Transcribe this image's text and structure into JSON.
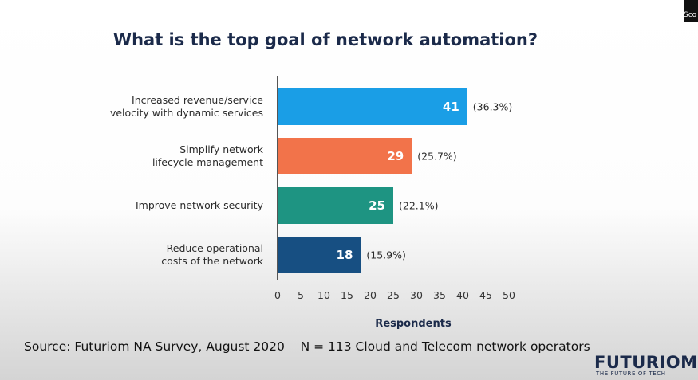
{
  "title": "What is the top goal of network automation?",
  "chart_data": {
    "type": "bar",
    "orientation": "horizontal",
    "categories": [
      "Increased revenue/service velocity with dynamic services",
      "Simplify network lifecycle management",
      "Improve network security",
      "Reduce operational costs of the network"
    ],
    "values": [
      41,
      29,
      25,
      18
    ],
    "share_labels": [
      "(36.3%)",
      "(25.7%)",
      "(22.1%)",
      "(15.9%)"
    ],
    "colors": [
      "#1a9ee6",
      "#f2734a",
      "#1e9482",
      "#174f82"
    ],
    "xlim": [
      0,
      50
    ],
    "xticks": [
      0,
      5,
      10,
      15,
      20,
      25,
      30,
      35,
      40,
      45,
      50
    ],
    "xlabel": "Respondents",
    "grid": false
  },
  "source": "Source: Futuriom NA Survey, August 2020    N = 113 Cloud and Telecom network operators",
  "logo": "FUTURIOM",
  "tagline": "THE FUTURE OF TECH",
  "overlay_tag": "Sco"
}
